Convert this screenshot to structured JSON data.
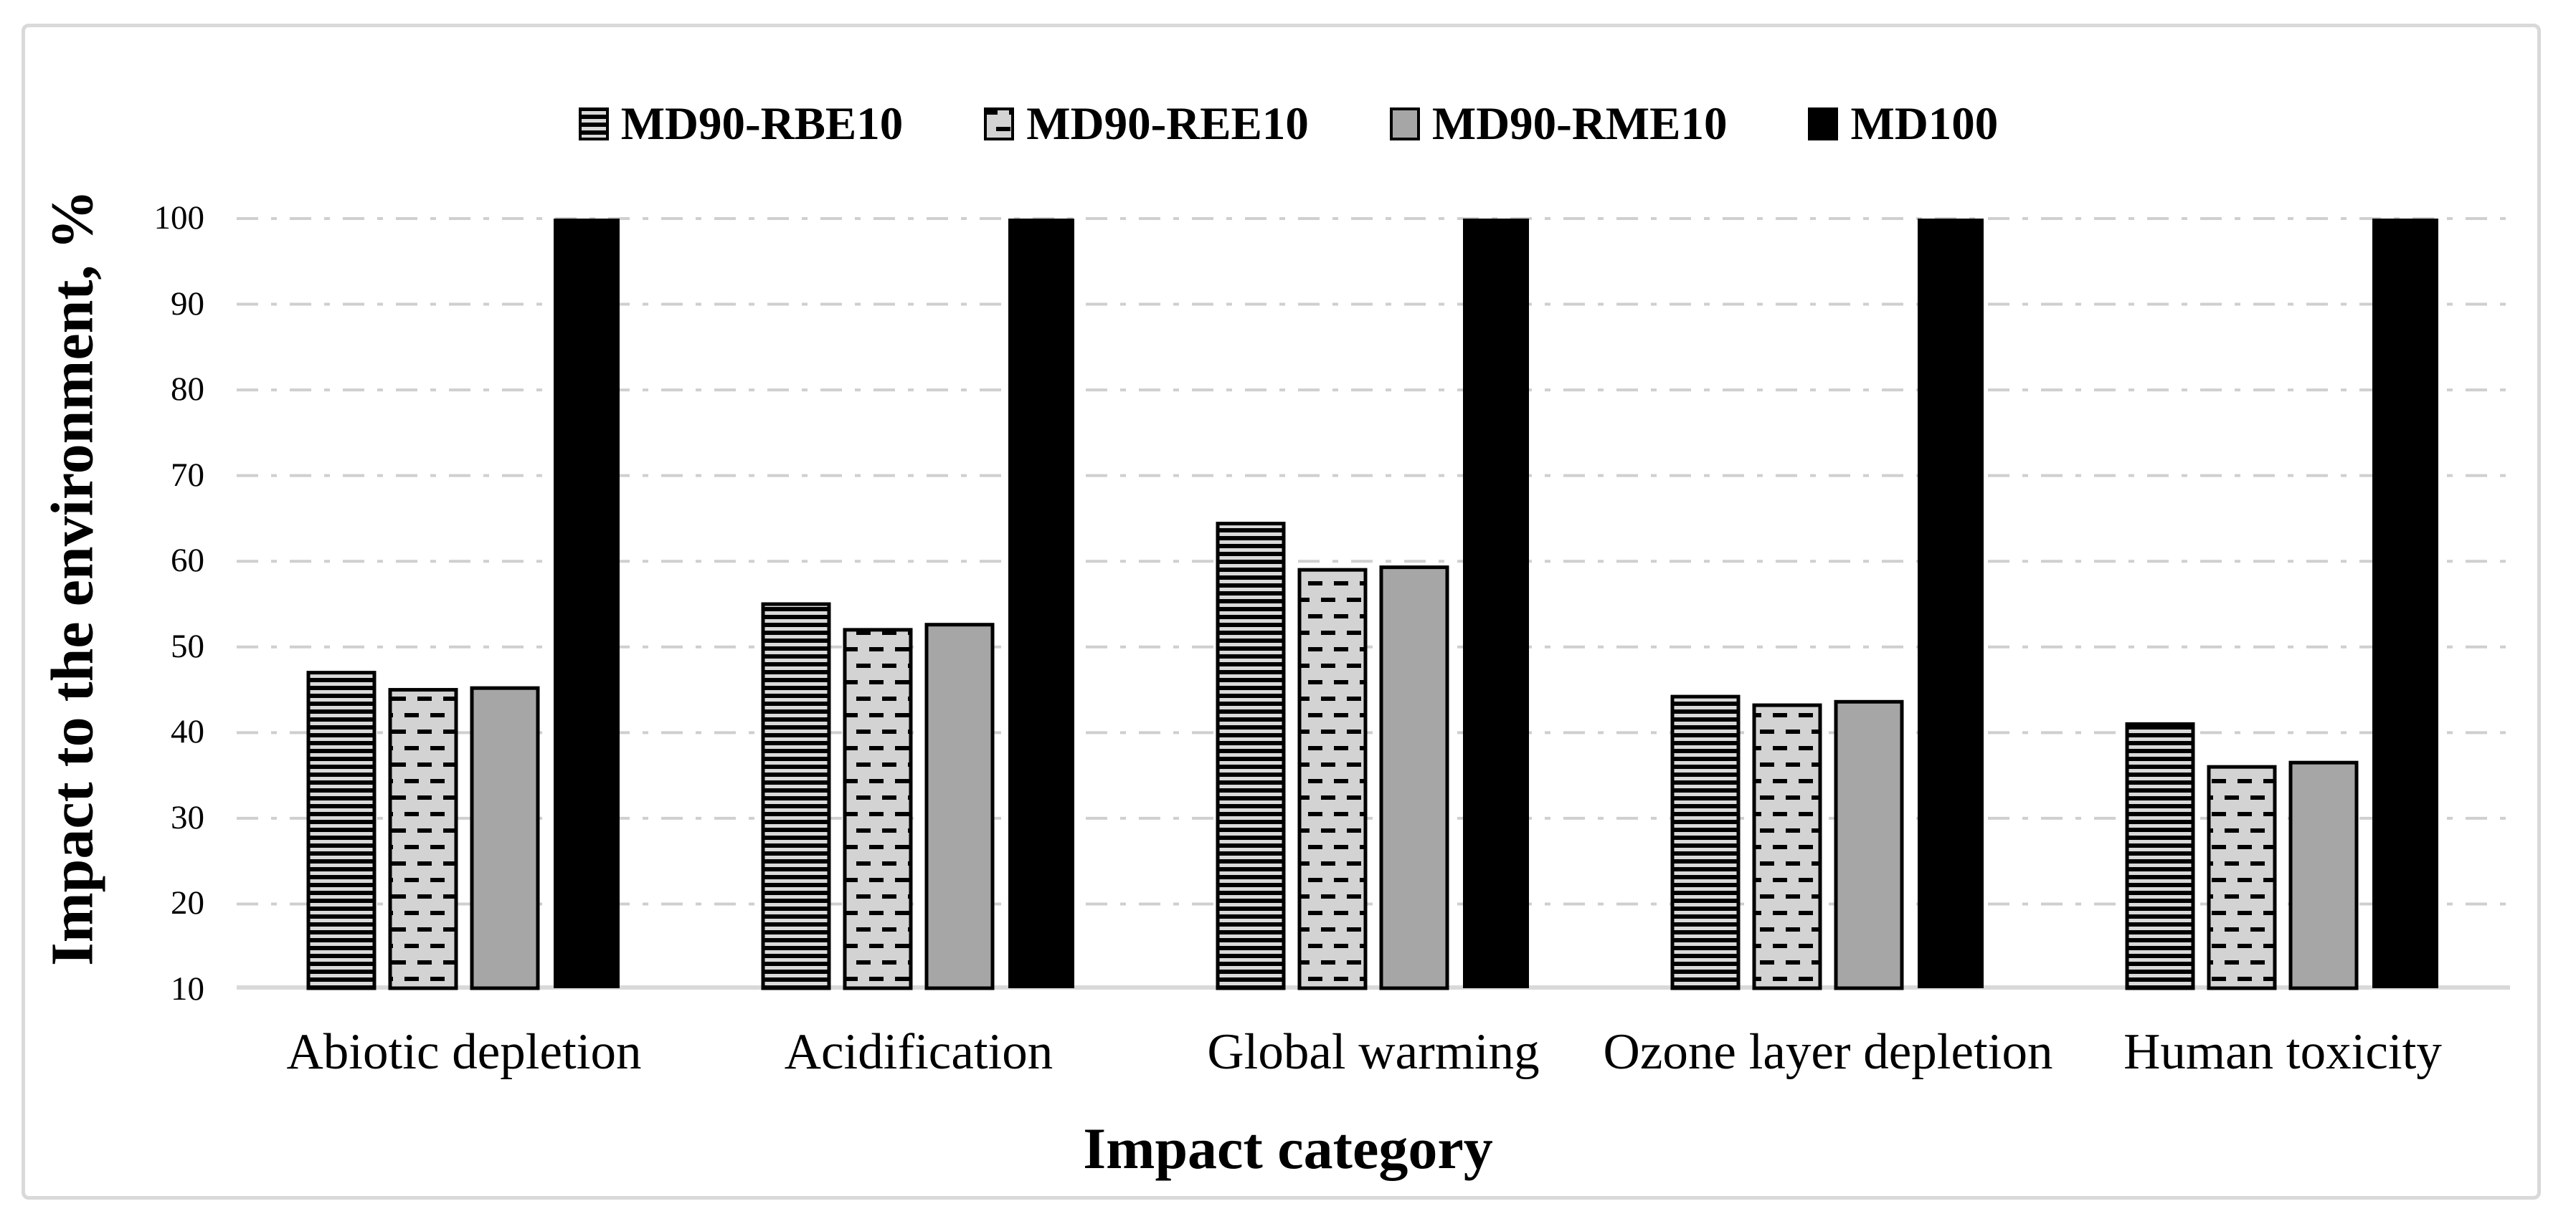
{
  "figure": {
    "background": "#ffffff",
    "frame_border_color": "#d9d9d9"
  },
  "y_axis": {
    "title": "Impact to the environment, %",
    "ticks": [
      10,
      20,
      30,
      40,
      50,
      60,
      70,
      80,
      90,
      100
    ],
    "min": 10,
    "max": 100
  },
  "x_axis": {
    "title": "Impact category"
  },
  "chart_data": {
    "type": "bar",
    "title": "",
    "xlabel": "Impact category",
    "ylabel": "Impact to the environment, %",
    "categories": [
      "Abiotic depletion",
      "Acidification",
      "Global warming",
      "Ozone layer depletion",
      "Human toxicity"
    ],
    "series": [
      {
        "name": "MD90-RBE10",
        "pattern": "stripes",
        "values": [
          47,
          55,
          64.4,
          44.2,
          41
        ]
      },
      {
        "name": "MD90-REE10",
        "pattern": "dashes",
        "values": [
          45,
          52,
          59,
          43.2,
          36
        ]
      },
      {
        "name": "MD90-RME10",
        "pattern": "solid-gray",
        "values": [
          45.2,
          52.6,
          59.3,
          43.6,
          36.5
        ]
      },
      {
        "name": "MD100",
        "pattern": "solid-black",
        "values": [
          100,
          100,
          100,
          100,
          100
        ]
      }
    ],
    "ylim": [
      10,
      100
    ],
    "grid": "horizontal-dash-dot",
    "legend_position": "top-center"
  },
  "palette": {
    "black": "#000000",
    "stripe_light": "#d9d9d9",
    "dash_bg": "#d3d3d3",
    "mid_gray": "#a6a6a6",
    "gridline": "#cfcfcf",
    "baseline": "#d9d9d9"
  }
}
